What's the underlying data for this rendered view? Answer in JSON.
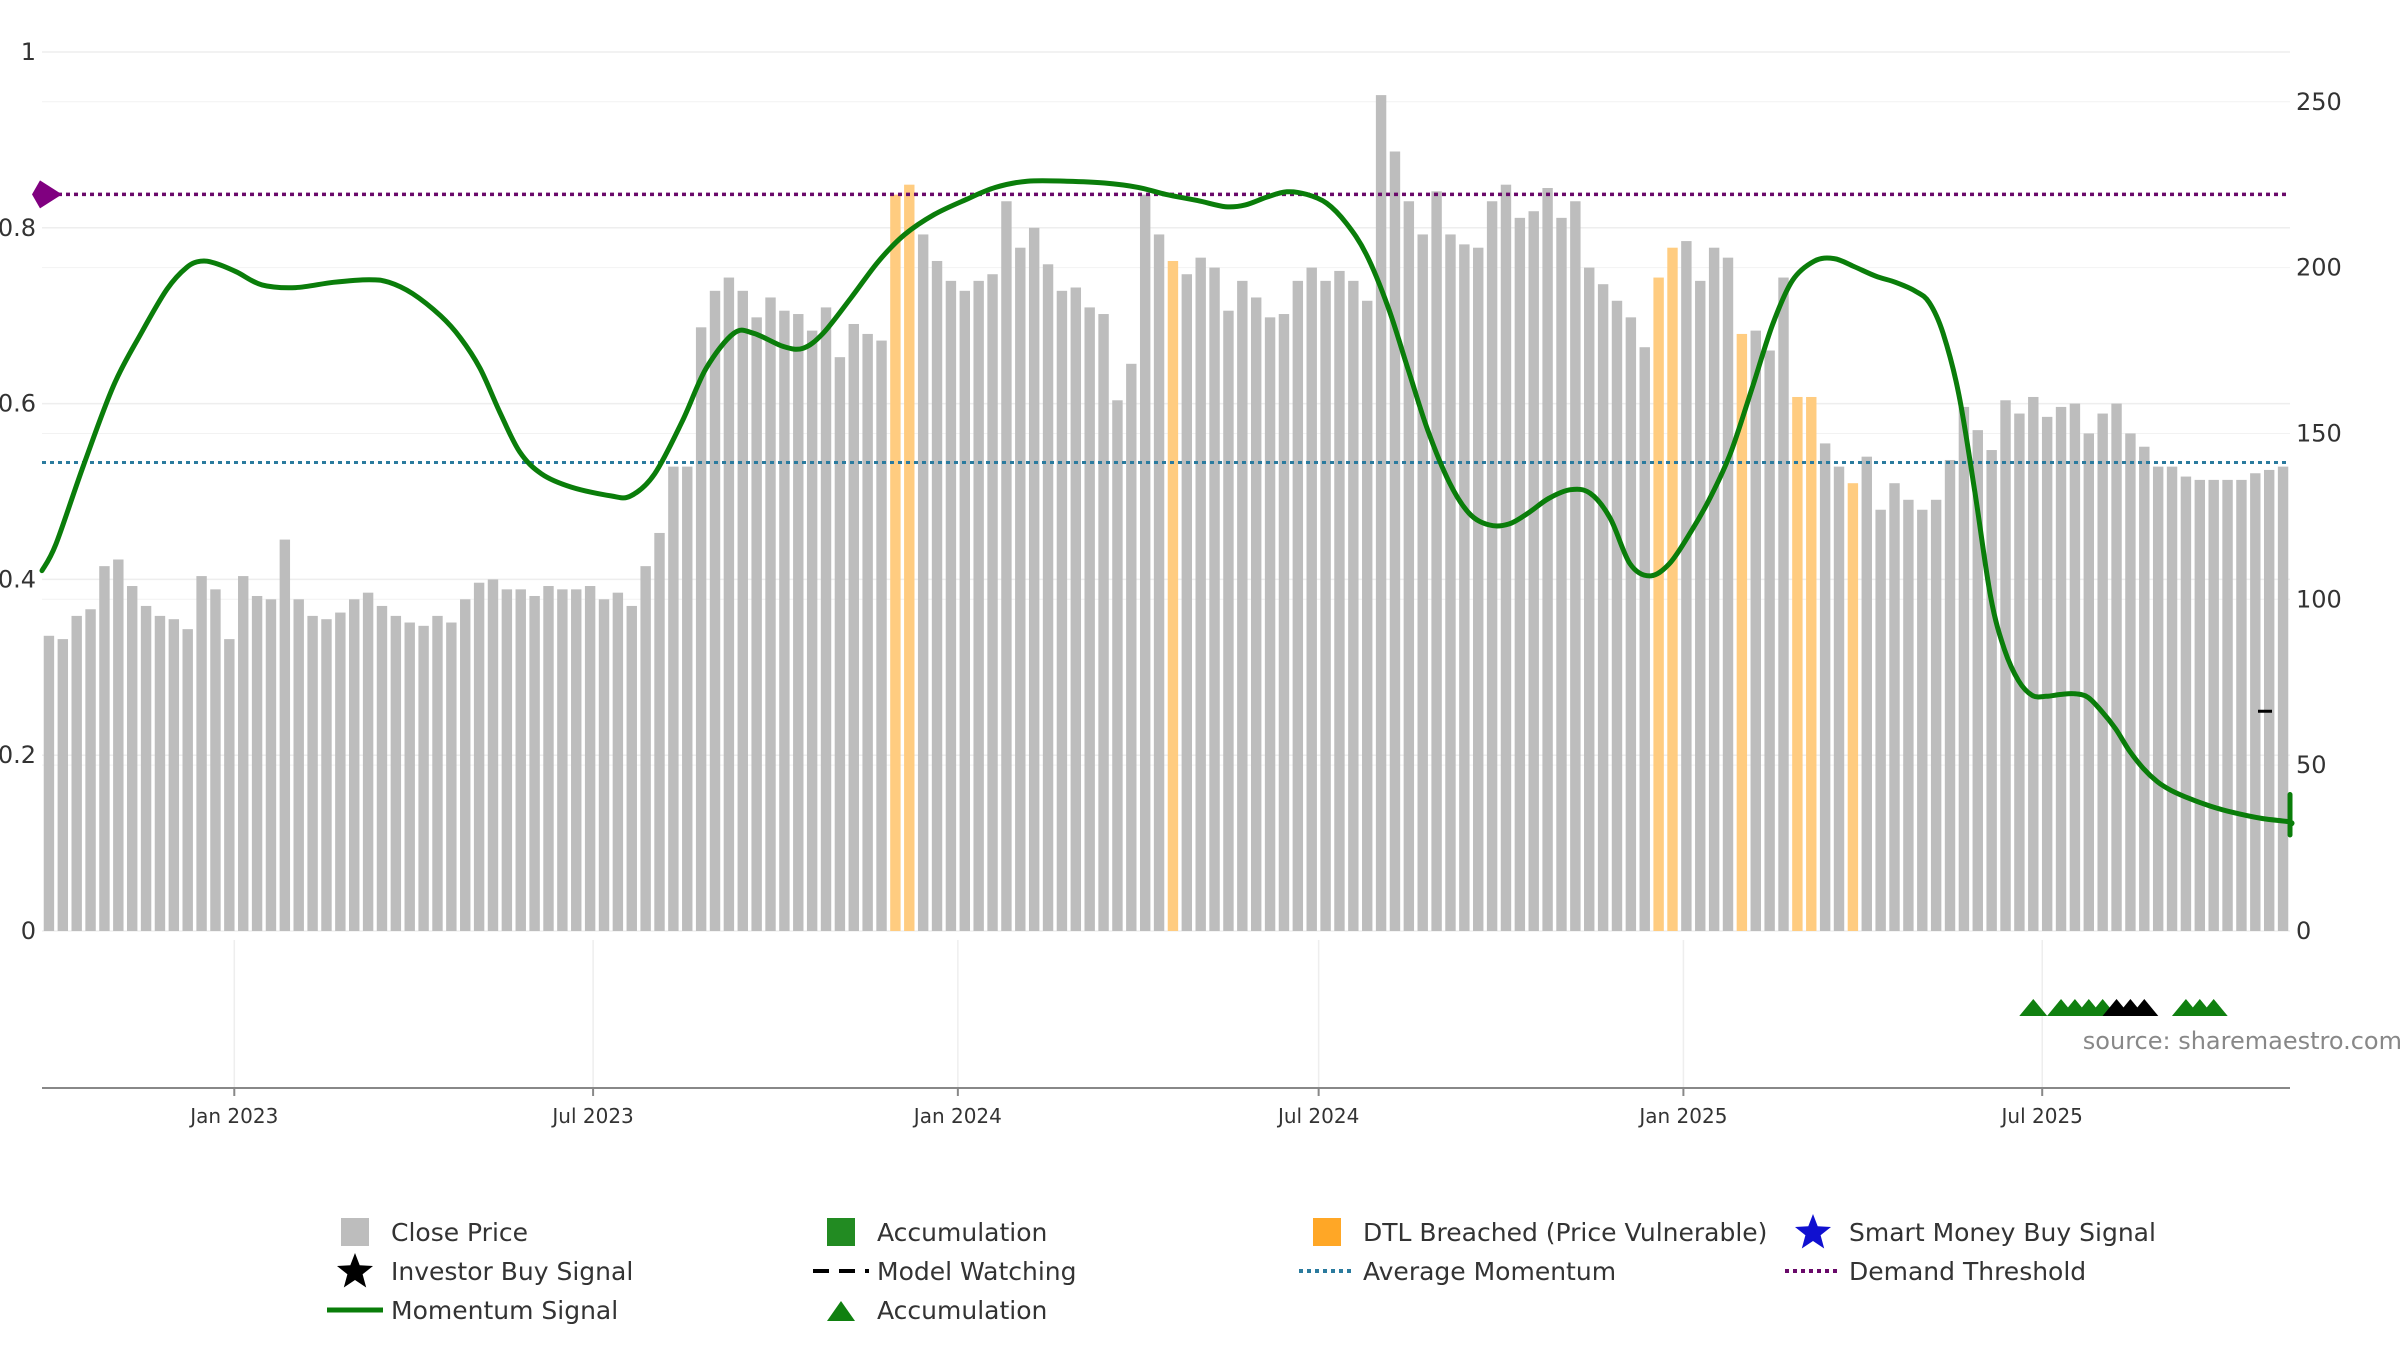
{
  "colors": {
    "close_price": "#bdbdbd",
    "accumulation": "#228b22",
    "dtl_breached": "#ffcc80",
    "momentum": "#0a7d0a",
    "average_momentum": "#2b7b9e",
    "demand_threshold": "#6a0a6a",
    "smart_money": "#1010d0",
    "investor": "#000000"
  },
  "axes": {
    "left_ticks": [
      {
        "v": 0,
        "label": "0"
      },
      {
        "v": 0.2,
        "label": "0.2"
      },
      {
        "v": 0.4,
        "label": "0.4"
      },
      {
        "v": 0.6,
        "label": "0.6"
      },
      {
        "v": 0.8,
        "label": "0.8"
      },
      {
        "v": 1,
        "label": "1"
      }
    ],
    "right_ticks": [
      {
        "v": 0,
        "label": "0"
      },
      {
        "v": 50,
        "label": "50"
      },
      {
        "v": 100,
        "label": "100"
      },
      {
        "v": 150,
        "label": "150"
      },
      {
        "v": 200,
        "label": "200"
      },
      {
        "v": 250,
        "label": "250"
      }
    ],
    "x_ticks": [
      {
        "date": "2023-01-01",
        "label": "Jan 2023"
      },
      {
        "date": "2023-07-01",
        "label": "Jul 2023"
      },
      {
        "date": "2024-01-01",
        "label": "Jan 2024"
      },
      {
        "date": "2024-07-01",
        "label": "Jul 2024"
      },
      {
        "date": "2025-01-01",
        "label": "Jan 2025"
      },
      {
        "date": "2025-07-01",
        "label": "Jul 2025"
      }
    ]
  },
  "source_text": "source: sharemaestro.com",
  "chart_data": {
    "type": "bar",
    "start_date": "2022-09-26",
    "interval_days": 7,
    "left_ylim": [
      0,
      1
    ],
    "right_ylim": [
      0,
      265
    ],
    "prices": [
      89,
      88,
      95,
      97,
      110,
      112,
      104,
      98,
      95,
      94,
      91,
      107,
      103,
      88,
      107,
      101,
      100,
      118,
      100,
      95,
      94,
      96,
      100,
      102,
      98,
      95,
      93,
      92,
      95,
      93,
      100,
      105,
      106,
      103,
      103,
      101,
      104,
      103,
      103,
      104,
      100,
      102,
      98,
      110,
      120,
      140,
      140,
      182,
      193,
      197,
      193,
      185,
      191,
      187,
      186,
      181,
      188,
      173,
      183,
      180,
      178,
      222,
      225,
      210,
      202,
      196,
      193,
      196,
      198,
      220,
      206,
      212,
      201,
      193,
      194,
      188,
      186,
      160,
      171,
      222,
      210,
      202,
      198,
      203,
      200,
      187,
      196,
      191,
      185,
      186,
      196,
      200,
      196,
      199,
      196,
      190,
      252,
      235,
      220,
      210,
      223,
      210,
      207,
      206,
      220,
      225,
      215,
      217,
      224,
      215,
      220,
      200,
      195,
      190,
      185,
      176,
      197,
      206,
      208,
      196,
      206,
      203,
      180,
      181,
      175,
      197,
      161,
      161,
      147,
      140,
      135,
      143,
      127,
      135,
      130,
      127,
      130,
      142,
      158,
      151,
      145,
      160,
      156,
      161,
      155,
      158,
      159,
      150,
      156,
      159,
      150,
      146,
      140,
      140,
      137,
      136,
      136,
      136,
      136,
      138,
      139,
      140
    ],
    "bar_types": "UUUUUUUUUUUUUUUUUUUUUUUUUUUUUUUUUUUUUUUUUUUUUUUUUUUUUUUUUUUUUDDUUUUUUUUUUUUUUUUUUDUUUUUUUUUUUUUUUUUUUUUUUUUUUUUUUUUUDDUUUUDUUUDDUUDUUUUUUUUUUUUUUUUUUUUUUUUUUUUUUUUUUUUUUUUUUAUAAAAAAUUUUUUUUAAA",
    "momentum_signal": [
      [
        "2022-09-26",
        0.41
      ],
      [
        "2022-10-03",
        0.44
      ],
      [
        "2022-10-17",
        0.53
      ],
      [
        "2022-11-01",
        0.62
      ],
      [
        "2022-11-15",
        0.68
      ],
      [
        "2022-11-28",
        0.73
      ],
      [
        "2022-12-08",
        0.755
      ],
      [
        "2022-12-15",
        0.762
      ],
      [
        "2022-12-22",
        0.76
      ],
      [
        "2023-01-02",
        0.75
      ],
      [
        "2023-01-15",
        0.735
      ],
      [
        "2023-02-01",
        0.732
      ],
      [
        "2023-02-20",
        0.738
      ],
      [
        "2023-03-10",
        0.741
      ],
      [
        "2023-03-20",
        0.738
      ],
      [
        "2023-04-01",
        0.725
      ],
      [
        "2023-04-15",
        0.7
      ],
      [
        "2023-04-25",
        0.675
      ],
      [
        "2023-05-05",
        0.64
      ],
      [
        "2023-05-15",
        0.59
      ],
      [
        "2023-05-25",
        0.545
      ],
      [
        "2023-06-05",
        0.52
      ],
      [
        "2023-06-20",
        0.505
      ],
      [
        "2023-07-10",
        0.495
      ],
      [
        "2023-07-20",
        0.495
      ],
      [
        "2023-08-01",
        0.52
      ],
      [
        "2023-08-15",
        0.58
      ],
      [
        "2023-08-27",
        0.64
      ],
      [
        "2023-09-10",
        0.68
      ],
      [
        "2023-09-20",
        0.68
      ],
      [
        "2023-10-05",
        0.665
      ],
      [
        "2023-10-15",
        0.663
      ],
      [
        "2023-10-25",
        0.68
      ],
      [
        "2023-11-08",
        0.72
      ],
      [
        "2023-11-22",
        0.762
      ],
      [
        "2023-12-05",
        0.792
      ],
      [
        "2023-12-20",
        0.815
      ],
      [
        "2024-01-05",
        0.832
      ],
      [
        "2024-01-20",
        0.846
      ],
      [
        "2024-02-05",
        0.853
      ],
      [
        "2024-02-25",
        0.853
      ],
      [
        "2024-03-15",
        0.851
      ],
      [
        "2024-04-01",
        0.846
      ],
      [
        "2024-04-15",
        0.838
      ],
      [
        "2024-05-01",
        0.831
      ],
      [
        "2024-05-15",
        0.824
      ],
      [
        "2024-05-25",
        0.826
      ],
      [
        "2024-06-05",
        0.835
      ],
      [
        "2024-06-15",
        0.841
      ],
      [
        "2024-06-25",
        0.838
      ],
      [
        "2024-07-05",
        0.828
      ],
      [
        "2024-07-15",
        0.805
      ],
      [
        "2024-07-25",
        0.77
      ],
      [
        "2024-08-05",
        0.71
      ],
      [
        "2024-08-15",
        0.64
      ],
      [
        "2024-08-25",
        0.57
      ],
      [
        "2024-09-05",
        0.51
      ],
      [
        "2024-09-15",
        0.475
      ],
      [
        "2024-09-25",
        0.462
      ],
      [
        "2024-10-05",
        0.463
      ],
      [
        "2024-10-15",
        0.476
      ],
      [
        "2024-10-25",
        0.492
      ],
      [
        "2024-11-05",
        0.502
      ],
      [
        "2024-11-15",
        0.498
      ],
      [
        "2024-11-25",
        0.47
      ],
      [
        "2024-12-05",
        0.418
      ],
      [
        "2024-12-15",
        0.404
      ],
      [
        "2024-12-25",
        0.418
      ],
      [
        "2025-01-05",
        0.455
      ],
      [
        "2025-01-15",
        0.495
      ],
      [
        "2025-01-25",
        0.545
      ],
      [
        "2025-02-05",
        0.62
      ],
      [
        "2025-02-15",
        0.69
      ],
      [
        "2025-02-25",
        0.74
      ],
      [
        "2025-03-08",
        0.762
      ],
      [
        "2025-03-18",
        0.765
      ],
      [
        "2025-03-28",
        0.756
      ],
      [
        "2025-04-08",
        0.745
      ],
      [
        "2025-04-18",
        0.738
      ],
      [
        "2025-04-28",
        0.728
      ],
      [
        "2025-05-05",
        0.715
      ],
      [
        "2025-05-12",
        0.68
      ],
      [
        "2025-05-20",
        0.61
      ],
      [
        "2025-05-28",
        0.5
      ],
      [
        "2025-06-05",
        0.38
      ],
      [
        "2025-06-12",
        0.32
      ],
      [
        "2025-06-19",
        0.285
      ],
      [
        "2025-06-26",
        0.268
      ],
      [
        "2025-07-03",
        0.267
      ],
      [
        "2025-07-10",
        0.269
      ],
      [
        "2025-07-17",
        0.27
      ],
      [
        "2025-07-24",
        0.266
      ],
      [
        "2025-07-31",
        0.25
      ],
      [
        "2025-08-07",
        0.23
      ],
      [
        "2025-08-14",
        0.205
      ],
      [
        "2025-08-21",
        0.185
      ],
      [
        "2025-08-28",
        0.17
      ],
      [
        "2025-09-04",
        0.16
      ],
      [
        "2025-09-14",
        0.15
      ],
      [
        "2025-09-24",
        0.142
      ],
      [
        "2025-10-05",
        0.135
      ],
      [
        "2025-10-20",
        0.128
      ],
      [
        "2025-11-05",
        0.124
      ],
      [
        "2025-11-20",
        0.12
      ],
      [
        "2025-12-05",
        0.114
      ],
      [
        "2025-12-18",
        0.11
      ],
      [
        "2025-12-28",
        0.11
      ],
      [
        "2026-01-08",
        0.118
      ],
      [
        "2026-01-20",
        0.13
      ],
      [
        "2026-02-01",
        0.14
      ],
      [
        "2026-02-15",
        0.148
      ],
      [
        "2026-03-01",
        0.153
      ],
      [
        "2026-03-15",
        0.155
      ],
      [
        "2026-04-01",
        0.155
      ],
      [
        "2026-04-20",
        0.152
      ],
      [
        "2026-05-08",
        0.148
      ],
      [
        "2026-05-18",
        0.14
      ],
      [
        "2026-05-28",
        0.135
      ],
      [
        "2026-06-05",
        0.125
      ],
      [
        "2026-06-15",
        0.14
      ],
      [
        "2026-06-25",
        0.15
      ],
      [
        "2026-07-05",
        0.151
      ]
    ],
    "average_momentum": 0.533,
    "demand_threshold": 0.838,
    "model_watching_y": 0.25,
    "signal_markers": {
      "accumulation_triangles": [
        143,
        145,
        146,
        147,
        148,
        154,
        155,
        156
      ],
      "investor_buy_signals": [
        149,
        150,
        151
      ]
    },
    "legend": [
      {
        "key": "close_price",
        "label": "Close Price"
      },
      {
        "key": "accumulation_bar",
        "label": "Accumulation"
      },
      {
        "key": "dtl_breached",
        "label": "DTL Breached (Price Vulnerable)"
      },
      {
        "key": "smart_money",
        "label": "Smart Money Buy Signal"
      },
      {
        "key": "investor",
        "label": "Investor Buy Signal"
      },
      {
        "key": "model_watching",
        "label": "Model Watching"
      },
      {
        "key": "average_momentum",
        "label": "Average Momentum"
      },
      {
        "key": "demand_threshold",
        "label": "Demand Threshold"
      },
      {
        "key": "momentum",
        "label": "Momentum Signal"
      },
      {
        "key": "accumulation_triangle",
        "label": "Accumulation"
      }
    ]
  }
}
